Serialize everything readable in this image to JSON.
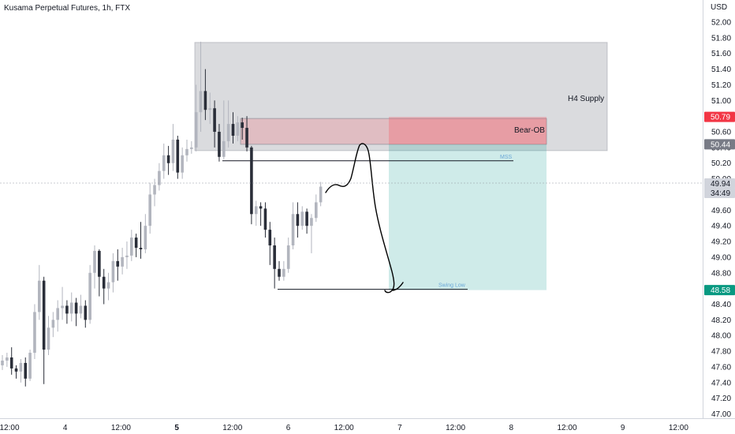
{
  "header": {
    "title": "Kusama Perpetual Futures, 1h, FTX"
  },
  "chart_data": {
    "type": "candlestick",
    "y_axis": {
      "unit": "USD",
      "range": [
        46.94,
        52.22
      ],
      "ticks": [
        "52.00",
        "51.80",
        "51.60",
        "51.40",
        "51.20",
        "51.00",
        "50.80",
        "50.60",
        "50.40",
        "50.20",
        "50.00",
        "49.80",
        "49.60",
        "49.40",
        "49.20",
        "49.00",
        "48.80",
        "48.60",
        "48.40",
        "48.20",
        "48.00",
        "47.80",
        "47.60",
        "47.40",
        "47.20",
        "47.00"
      ]
    },
    "x_axis": {
      "ticks": [
        {
          "label": "12:00",
          "bold": false
        },
        {
          "label": "4",
          "bold": false
        },
        {
          "label": "12:00",
          "bold": false
        },
        {
          "label": "5",
          "bold": true
        },
        {
          "label": "12:00",
          "bold": false
        },
        {
          "label": "6",
          "bold": false
        },
        {
          "label": "12:00",
          "bold": false
        },
        {
          "label": "7",
          "bold": false
        },
        {
          "label": "12:00",
          "bold": false
        },
        {
          "label": "8",
          "bold": false
        },
        {
          "label": "12:00",
          "bold": false
        },
        {
          "label": "9",
          "bold": false
        },
        {
          "label": "12:00",
          "bold": false
        }
      ]
    },
    "candles": [
      [
        47.62,
        47.68,
        47.56,
        47.75
      ],
      [
        47.68,
        47.72,
        47.6,
        47.78
      ],
      [
        47.72,
        47.58,
        47.5,
        47.85
      ],
      [
        47.58,
        47.54,
        47.45,
        47.62
      ],
      [
        47.54,
        47.65,
        47.4,
        47.7
      ],
      [
        47.65,
        47.45,
        47.35,
        47.72
      ],
      [
        47.45,
        47.78,
        47.42,
        47.82
      ],
      [
        47.78,
        48.3,
        47.7,
        48.4
      ],
      [
        48.3,
        48.7,
        48.2,
        48.9
      ],
      [
        48.7,
        47.82,
        47.38,
        48.75
      ],
      [
        47.82,
        48.1,
        47.75,
        48.25
      ],
      [
        48.1,
        48.2,
        47.98,
        48.3
      ],
      [
        48.2,
        48.35,
        48.05,
        48.45
      ],
      [
        48.35,
        48.38,
        48.2,
        48.62
      ],
      [
        48.38,
        48.28,
        48.15,
        48.45
      ],
      [
        48.28,
        48.42,
        48.18,
        48.55
      ],
      [
        48.42,
        48.28,
        48.12,
        48.48
      ],
      [
        48.28,
        48.38,
        48.22,
        48.52
      ],
      [
        48.38,
        48.2,
        48.1,
        48.45
      ],
      [
        48.2,
        48.8,
        48.15,
        48.9
      ],
      [
        48.8,
        49.08,
        48.6,
        49.15
      ],
      [
        49.08,
        48.75,
        48.5,
        49.1
      ],
      [
        48.75,
        48.6,
        48.4,
        48.85
      ],
      [
        48.6,
        48.68,
        48.45,
        48.8
      ],
      [
        48.68,
        48.95,
        48.55,
        49.05
      ],
      [
        48.95,
        48.88,
        48.7,
        49.1
      ],
      [
        48.88,
        49.0,
        48.78,
        49.12
      ],
      [
        49.0,
        49.02,
        48.85,
        49.2
      ],
      [
        49.02,
        49.25,
        48.95,
        49.35
      ],
      [
        49.25,
        49.12,
        49.0,
        49.3
      ],
      [
        49.12,
        49.1,
        48.98,
        49.45
      ],
      [
        49.1,
        49.4,
        49.05,
        49.55
      ],
      [
        49.4,
        49.8,
        49.3,
        49.95
      ],
      [
        49.8,
        49.92,
        49.65,
        50.0
      ],
      [
        49.92,
        50.1,
        49.85,
        50.2
      ],
      [
        50.1,
        50.3,
        50.0,
        50.45
      ],
      [
        50.3,
        50.2,
        50.05,
        50.42
      ],
      [
        50.2,
        50.5,
        50.1,
        50.7
      ],
      [
        50.5,
        50.08,
        50.0,
        50.55
      ],
      [
        50.08,
        50.3,
        50.0,
        50.4
      ],
      [
        50.3,
        50.38,
        50.22,
        50.5
      ],
      [
        50.38,
        50.4,
        50.32,
        50.48
      ],
      [
        50.4,
        50.85,
        50.35,
        51.2
      ],
      [
        50.85,
        51.12,
        50.6,
        51.75
      ],
      [
        51.12,
        50.88,
        50.75,
        51.4
      ],
      [
        50.88,
        50.9,
        50.7,
        51.1
      ],
      [
        50.9,
        50.6,
        50.4,
        51.0
      ],
      [
        50.6,
        50.28,
        50.22,
        50.7
      ],
      [
        50.28,
        50.48,
        50.25,
        51.0
      ],
      [
        50.48,
        50.7,
        50.4,
        51.0
      ],
      [
        50.7,
        50.55,
        50.45,
        50.85
      ],
      [
        50.55,
        50.72,
        50.48,
        50.8
      ],
      [
        50.72,
        50.65,
        50.5,
        50.78
      ],
      [
        50.65,
        50.4,
        50.35,
        50.8
      ],
      [
        50.4,
        49.55,
        49.42,
        50.42
      ],
      [
        49.55,
        49.65,
        49.4,
        49.72
      ],
      [
        49.65,
        49.62,
        49.4,
        49.7
      ],
      [
        49.62,
        49.35,
        49.25,
        49.7
      ],
      [
        49.35,
        49.15,
        48.9,
        49.45
      ],
      [
        49.15,
        48.85,
        48.6,
        49.25
      ],
      [
        48.85,
        48.75,
        48.7,
        48.95
      ],
      [
        48.75,
        48.85,
        48.7,
        48.95
      ],
      [
        48.85,
        49.15,
        48.8,
        49.25
      ],
      [
        49.15,
        49.55,
        49.1,
        49.7
      ],
      [
        49.55,
        49.4,
        49.25,
        49.7
      ],
      [
        49.4,
        49.58,
        49.35,
        49.65
      ],
      [
        49.58,
        49.4,
        49.3,
        49.62
      ],
      [
        49.4,
        49.5,
        49.05,
        49.55
      ],
      [
        49.5,
        49.7,
        49.45,
        49.8
      ],
      [
        49.7,
        49.9,
        49.65,
        49.96
      ]
    ],
    "annotations": {
      "h4_supply": {
        "label": "H4 Supply",
        "top": 51.74,
        "bottom": 50.36
      },
      "bear_ob": {
        "label": "Bear-OB",
        "top": 50.77,
        "bottom": 50.44
      },
      "mss": {
        "label": "MSS",
        "price": 50.23
      },
      "swing_low": {
        "label": "Swing Low",
        "price": 48.59
      },
      "position": {
        "entry": 50.44,
        "stop": 50.79,
        "target": 48.58
      }
    },
    "price_labels": [
      {
        "text": "50.79",
        "price": 50.79,
        "color": "#f23645",
        "text_color": "light"
      },
      {
        "text": "50.44",
        "price": 50.44,
        "color": "#787b86",
        "text_color": "light"
      },
      {
        "text": "49.94",
        "price": 49.94,
        "color": "#d1d4dc",
        "text_color": "dark"
      },
      {
        "text": "34:49",
        "price": 49.82,
        "color": "#d1d4dc",
        "text_color": "dark"
      },
      {
        "text": "48.58",
        "price": 48.58,
        "color": "#089981",
        "text_color": "light"
      }
    ],
    "colors": {
      "bull": "#b2b5be",
      "bear": "#2a2e39",
      "supply_zone": "#9598a1",
      "ob_zone": "#f7525f",
      "target_zone": "#26a69a",
      "axis": "#d1d4dc"
    },
    "grid": false
  }
}
